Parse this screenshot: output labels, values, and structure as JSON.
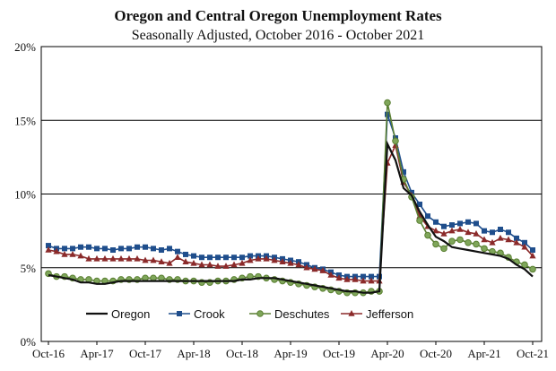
{
  "chart_data": {
    "type": "line",
    "title": "Oregon and Central Oregon Unemployment Rates",
    "subtitle": "Seasonally Adjusted, October 2016 - October 2021",
    "xlabel": "",
    "ylabel": "",
    "ylim": [
      0,
      20
    ],
    "y_ticks": [
      "0%",
      "5%",
      "10%",
      "15%",
      "20%"
    ],
    "x_ticks": [
      "Oct-16",
      "Apr-17",
      "Oct-17",
      "Apr-18",
      "Oct-18",
      "Apr-19",
      "Oct-19",
      "Apr-20",
      "Oct-20",
      "Apr-21",
      "Oct-21"
    ],
    "grid": "horizontal",
    "legend_position": "bottom-inside",
    "x": [
      "Oct-16",
      "Nov-16",
      "Dec-16",
      "Jan-17",
      "Feb-17",
      "Mar-17",
      "Apr-17",
      "May-17",
      "Jun-17",
      "Jul-17",
      "Aug-17",
      "Sep-17",
      "Oct-17",
      "Nov-17",
      "Dec-17",
      "Jan-18",
      "Feb-18",
      "Mar-18",
      "Apr-18",
      "May-18",
      "Jun-18",
      "Jul-18",
      "Aug-18",
      "Sep-18",
      "Oct-18",
      "Nov-18",
      "Dec-18",
      "Jan-19",
      "Feb-19",
      "Mar-19",
      "Apr-19",
      "May-19",
      "Jun-19",
      "Jul-19",
      "Aug-19",
      "Sep-19",
      "Oct-19",
      "Nov-19",
      "Dec-19",
      "Jan-20",
      "Feb-20",
      "Mar-20",
      "Apr-20",
      "May-20",
      "Jun-20",
      "Jul-20",
      "Aug-20",
      "Sep-20",
      "Oct-20",
      "Nov-20",
      "Dec-20",
      "Jan-21",
      "Feb-21",
      "Mar-21",
      "Apr-21",
      "May-21",
      "Jun-21",
      "Jul-21",
      "Aug-21",
      "Sep-21",
      "Oct-21"
    ],
    "series": [
      {
        "name": "Oregon",
        "color": "#111111",
        "marker": "none",
        "values": [
          4.5,
          4.4,
          4.3,
          4.2,
          4.0,
          4.0,
          3.9,
          3.9,
          4.0,
          4.1,
          4.1,
          4.1,
          4.1,
          4.1,
          4.1,
          4.1,
          4.1,
          4.1,
          4.1,
          4.1,
          4.1,
          4.1,
          4.1,
          4.1,
          4.2,
          4.2,
          4.3,
          4.3,
          4.3,
          4.2,
          4.1,
          4.0,
          3.9,
          3.8,
          3.7,
          3.6,
          3.5,
          3.4,
          3.4,
          3.3,
          3.3,
          3.4,
          13.4,
          12.3,
          10.4,
          9.9,
          8.8,
          7.9,
          7.1,
          6.8,
          6.4,
          6.3,
          6.2,
          6.1,
          6.0,
          5.9,
          5.8,
          5.6,
          5.2,
          4.9,
          4.4
        ]
      },
      {
        "name": "Crook",
        "color": "#1f4e8c",
        "marker": "square",
        "values": [
          6.5,
          6.3,
          6.3,
          6.3,
          6.4,
          6.4,
          6.3,
          6.3,
          6.2,
          6.3,
          6.3,
          6.4,
          6.4,
          6.3,
          6.2,
          6.3,
          6.1,
          5.9,
          5.8,
          5.7,
          5.7,
          5.7,
          5.7,
          5.7,
          5.7,
          5.8,
          5.8,
          5.8,
          5.7,
          5.6,
          5.5,
          5.4,
          5.2,
          5.0,
          4.9,
          4.7,
          4.5,
          4.4,
          4.4,
          4.4,
          4.4,
          4.4,
          15.4,
          13.8,
          11.5,
          10.1,
          9.3,
          8.5,
          8.1,
          7.8,
          7.9,
          8.0,
          8.1,
          8.0,
          7.5,
          7.4,
          7.6,
          7.4,
          7.0,
          6.7,
          6.2
        ]
      },
      {
        "name": "Deschutes",
        "color": "#5a7f32",
        "marker": "circle",
        "values": [
          4.6,
          4.4,
          4.4,
          4.3,
          4.2,
          4.2,
          4.1,
          4.1,
          4.1,
          4.2,
          4.2,
          4.2,
          4.3,
          4.3,
          4.3,
          4.2,
          4.2,
          4.1,
          4.1,
          4.0,
          4.0,
          4.1,
          4.1,
          4.2,
          4.3,
          4.4,
          4.4,
          4.3,
          4.2,
          4.1,
          4.0,
          3.9,
          3.8,
          3.7,
          3.6,
          3.5,
          3.4,
          3.3,
          3.3,
          3.3,
          3.4,
          3.4,
          16.2,
          13.6,
          11.0,
          9.8,
          8.2,
          7.2,
          6.6,
          6.3,
          6.8,
          6.9,
          6.7,
          6.6,
          6.3,
          6.1,
          6.0,
          5.7,
          5.4,
          5.2,
          4.9
        ]
      },
      {
        "name": "Jefferson",
        "color": "#8b2a2a",
        "marker": "triangle",
        "values": [
          6.2,
          6.1,
          5.9,
          5.9,
          5.8,
          5.6,
          5.6,
          5.6,
          5.6,
          5.6,
          5.6,
          5.6,
          5.5,
          5.5,
          5.4,
          5.3,
          5.7,
          5.4,
          5.3,
          5.2,
          5.2,
          5.1,
          5.1,
          5.2,
          5.3,
          5.5,
          5.6,
          5.6,
          5.5,
          5.4,
          5.3,
          5.2,
          5.0,
          4.9,
          4.8,
          4.5,
          4.3,
          4.2,
          4.2,
          4.1,
          4.1,
          4.1,
          12.1,
          13.3,
          10.8,
          9.9,
          8.5,
          7.8,
          7.5,
          7.3,
          7.5,
          7.6,
          7.4,
          7.3,
          6.9,
          6.7,
          7.0,
          6.9,
          6.7,
          6.4,
          5.8
        ]
      }
    ]
  }
}
